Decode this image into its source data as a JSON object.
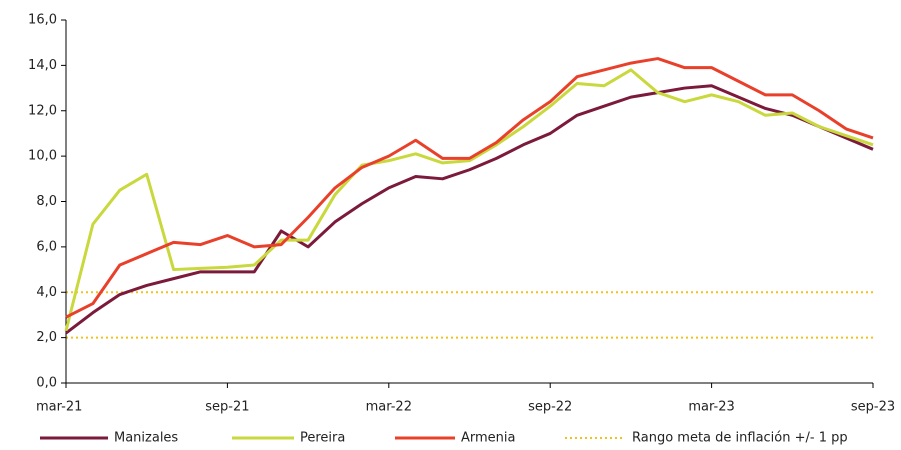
{
  "chart_data": {
    "type": "line",
    "categories": [
      "mar-21",
      null,
      null,
      null,
      null,
      null,
      "sep-21",
      null,
      null,
      null,
      null,
      null,
      "mar-22",
      null,
      null,
      null,
      null,
      null,
      "sep-22",
      null,
      null,
      null,
      null,
      null,
      "mar-23",
      null,
      null,
      null,
      null,
      null,
      "sep-23"
    ],
    "series": [
      {
        "name": "Manizales",
        "color": "#7b1a3a",
        "values": [
          2.2,
          3.1,
          3.9,
          4.3,
          4.6,
          4.9,
          4.9,
          4.9,
          6.7,
          6.0,
          7.1,
          7.9,
          8.6,
          9.1,
          9.0,
          9.4,
          9.9,
          10.5,
          11.0,
          11.8,
          12.2,
          12.6,
          12.8,
          13.0,
          13.1,
          12.6,
          12.1,
          11.8,
          11.3,
          10.8,
          10.3
        ]
      },
      {
        "name": "Pereira",
        "color": "#c9d83c",
        "values": [
          2.3,
          7.0,
          8.5,
          9.2,
          5.0,
          5.05,
          5.1,
          5.2,
          6.3,
          6.3,
          8.3,
          9.6,
          9.8,
          10.1,
          9.7,
          9.8,
          10.5,
          11.3,
          12.2,
          13.2,
          13.1,
          13.8,
          12.8,
          12.4,
          12.7,
          12.4,
          11.8,
          11.9,
          11.3,
          10.9,
          10.5
        ]
      },
      {
        "name": "Armenia",
        "color": "#e8402a",
        "values": [
          2.9,
          3.5,
          5.2,
          5.7,
          6.2,
          6.1,
          6.5,
          6.0,
          6.1,
          7.3,
          8.6,
          9.5,
          10.0,
          10.7,
          9.9,
          9.9,
          10.6,
          11.6,
          12.4,
          13.5,
          13.8,
          14.1,
          14.3,
          13.9,
          13.9,
          13.3,
          12.7,
          12.7,
          12.0,
          11.2,
          10.8
        ]
      }
    ],
    "band": {
      "name": "Rango meta de inflación +/- 1 pp",
      "color": "#f2c21a",
      "values": [
        2,
        4
      ]
    },
    "ylim": [
      0,
      16
    ],
    "yticks": [
      {
        "value": 0,
        "label": "0,0"
      },
      {
        "value": 2,
        "label": "2,0"
      },
      {
        "value": 4,
        "label": "4,0"
      },
      {
        "value": 6,
        "label": "6,0"
      },
      {
        "value": 8,
        "label": "8,0"
      },
      {
        "value": 10,
        "label": "10,0"
      },
      {
        "value": 12,
        "label": "12,0"
      },
      {
        "value": 14,
        "label": "14,0"
      },
      {
        "value": 16,
        "label": "16,0"
      }
    ],
    "legend": "bottom"
  }
}
